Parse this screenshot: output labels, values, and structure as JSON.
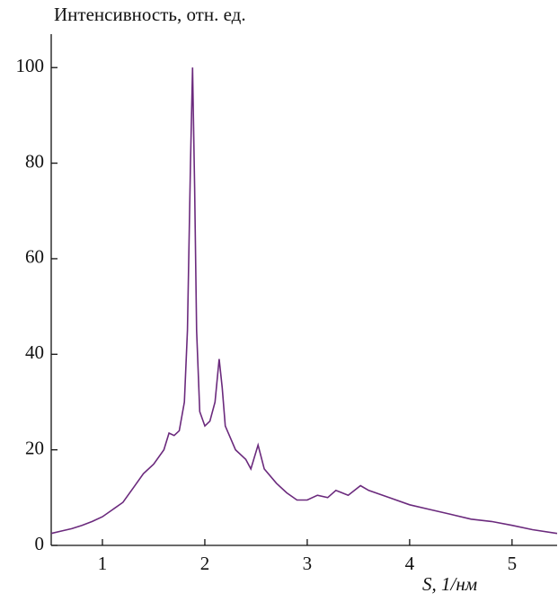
{
  "chart_data": {
    "type": "line",
    "y_label": "Интенсивность, отн. ед.",
    "x_label": "S, 1/нм",
    "x": [
      0.5,
      0.6,
      0.7,
      0.8,
      0.9,
      1.0,
      1.1,
      1.2,
      1.3,
      1.4,
      1.5,
      1.6,
      1.65,
      1.7,
      1.75,
      1.8,
      1.83,
      1.86,
      1.88,
      1.9,
      1.92,
      1.95,
      2.0,
      2.05,
      2.1,
      2.14,
      2.17,
      2.2,
      2.3,
      2.4,
      2.45,
      2.52,
      2.58,
      2.7,
      2.8,
      2.9,
      3.0,
      3.1,
      3.2,
      3.28,
      3.4,
      3.52,
      3.6,
      3.8,
      4.0,
      4.2,
      4.4,
      4.6,
      4.8,
      5.0,
      5.2,
      5.44
    ],
    "series": [
      {
        "color": "#6b2a7d",
        "values": [
          2.5,
          3,
          3.5,
          4.2,
          5,
          6,
          7.5,
          9,
          12,
          15,
          17,
          20,
          23.5,
          23,
          24,
          30,
          45,
          80,
          100,
          75,
          45,
          28,
          25,
          26,
          30,
          39,
          33,
          25,
          20,
          18,
          16,
          21,
          16,
          13,
          11,
          9.5,
          9.5,
          10.5,
          10,
          11.5,
          10.5,
          12.5,
          11.5,
          10,
          8.5,
          7.5,
          6.5,
          5.5,
          5,
          4.2,
          3.3,
          2.5
        ]
      }
    ],
    "xlim": [
      0.5,
      5.44
    ],
    "xticks": [
      1,
      2,
      3,
      4,
      5
    ],
    "ylim": [
      0,
      107
    ],
    "yticks": [
      0,
      20,
      40,
      60,
      80,
      100
    ],
    "grid": false
  }
}
